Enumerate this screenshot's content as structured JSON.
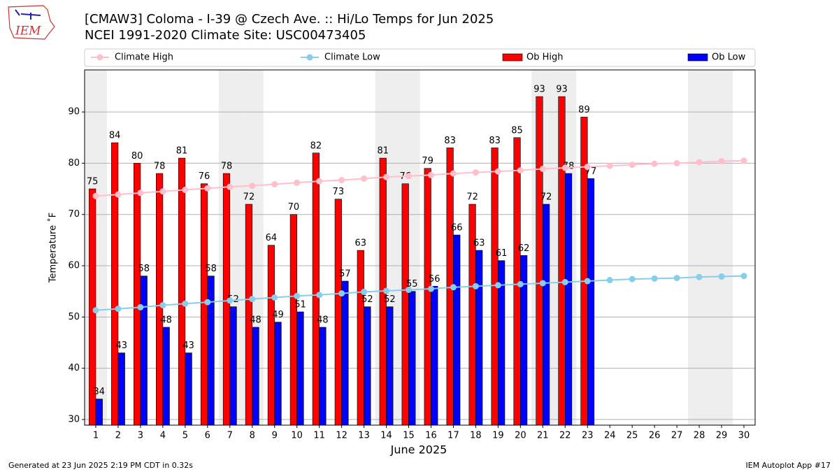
{
  "logo": "IEM",
  "footer": {
    "left": "Generated at 23 Jun 2025 2:19 PM CDT in 0.32s",
    "right": "IEM Autoplot App #17"
  },
  "chart_data": {
    "type": "bar",
    "title": "[CMAW3] Coloma - I-39 @ Czech Ave. :: Hi/Lo Temps for Jun 2025",
    "subtitle": "NCEI 1991-2020 Climate Site: USC00473405",
    "x_label": "June 2025",
    "y_label": "Temperature ˚F",
    "x": [
      1,
      2,
      3,
      4,
      5,
      6,
      7,
      8,
      9,
      10,
      11,
      12,
      13,
      14,
      15,
      16,
      17,
      18,
      19,
      20,
      21,
      22,
      23,
      24,
      25,
      26,
      27,
      28,
      29,
      30
    ],
    "xlim": [
      0.5,
      30.5
    ],
    "xticks": [
      1,
      2,
      3,
      4,
      5,
      6,
      7,
      8,
      9,
      10,
      11,
      12,
      13,
      14,
      15,
      16,
      17,
      18,
      19,
      20,
      21,
      22,
      23,
      24,
      25,
      26,
      27,
      28,
      29,
      30
    ],
    "ylim": [
      28.9,
      98.2
    ],
    "yticks": [
      30,
      40,
      50,
      60,
      70,
      80,
      90
    ],
    "grid": true,
    "shaded_days": [
      1,
      7,
      8,
      14,
      15,
      21,
      22,
      28,
      29
    ],
    "shade_color": "#eeeeee",
    "legend": "top",
    "series": [
      {
        "name": "Climate High",
        "type": "line",
        "color": "#ffc0cb",
        "values": [
          73.6,
          73.9,
          74.2,
          74.5,
          74.8,
          75.1,
          75.4,
          75.6,
          75.9,
          76.2,
          76.5,
          76.7,
          77.0,
          77.3,
          77.5,
          77.7,
          78.0,
          78.2,
          78.4,
          78.6,
          78.9,
          79.1,
          79.3,
          79.5,
          79.7,
          79.9,
          80.0,
          80.2,
          80.4,
          80.5
        ]
      },
      {
        "name": "Climate Low",
        "type": "line",
        "color": "#87ceeb",
        "values": [
          51.3,
          51.6,
          51.9,
          52.3,
          52.6,
          52.9,
          53.2,
          53.5,
          53.8,
          54.1,
          54.3,
          54.6,
          54.9,
          55.1,
          55.3,
          55.5,
          55.8,
          56.0,
          56.2,
          56.4,
          56.6,
          56.8,
          57.0,
          57.2,
          57.4,
          57.5,
          57.6,
          57.8,
          57.9,
          58.0
        ]
      },
      {
        "name": "Ob High",
        "type": "bar",
        "color": "#ff0000",
        "values": [
          75,
          84,
          80,
          78,
          81,
          76,
          78,
          72,
          64,
          70,
          82,
          73,
          63,
          81,
          76,
          79,
          83,
          72,
          83,
          85,
          93,
          93,
          89,
          null,
          null,
          null,
          null,
          null,
          null,
          null
        ]
      },
      {
        "name": "Ob Low",
        "type": "bar",
        "color": "#0000ff",
        "values": [
          34,
          43,
          58,
          48,
          43,
          58,
          52,
          48,
          49,
          51,
          48,
          57,
          52,
          52,
          55,
          56,
          66,
          63,
          61,
          62,
          72,
          78,
          77,
          null,
          null,
          null,
          null,
          null,
          null,
          null
        ]
      }
    ]
  }
}
